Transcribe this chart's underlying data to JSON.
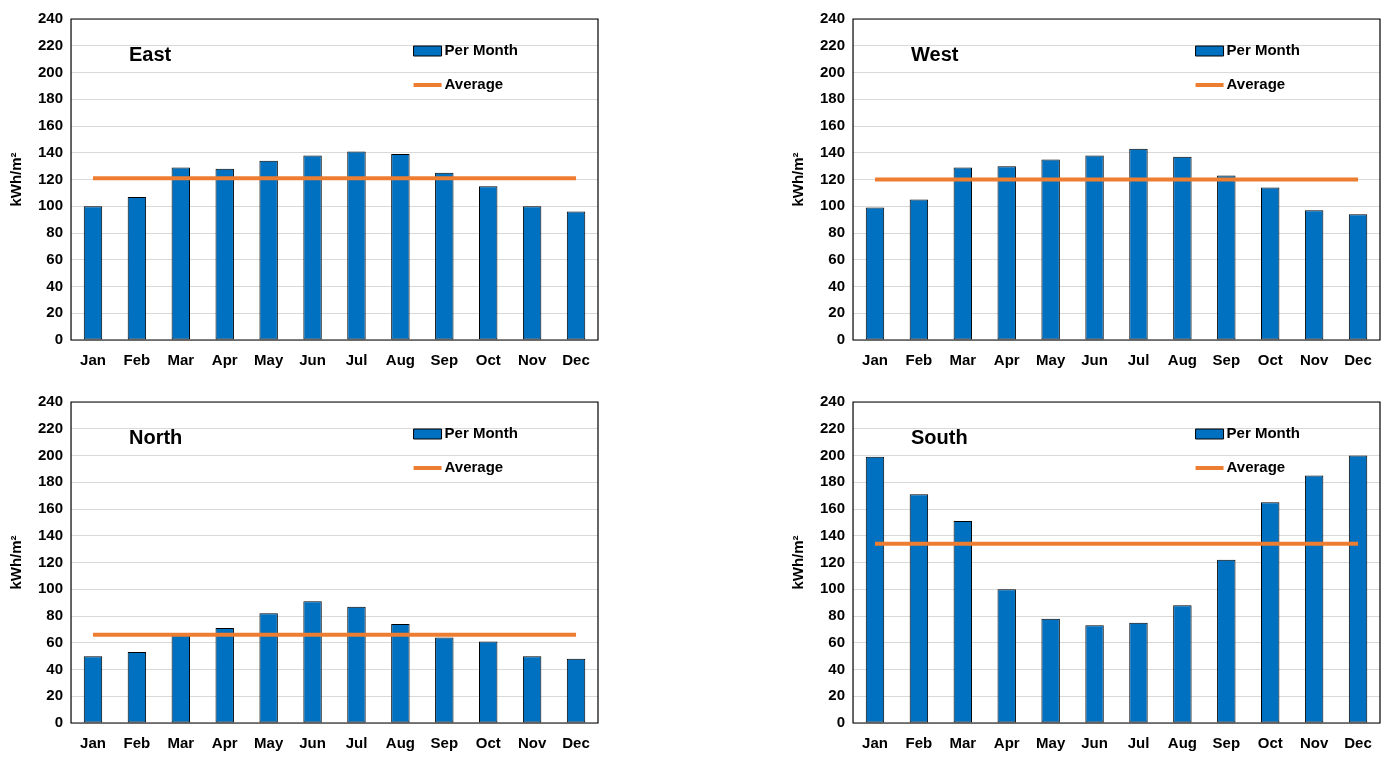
{
  "chart_data": [
    {
      "type": "bar",
      "title": "East",
      "ylabel": "kWh/m²",
      "categories": [
        "Jan",
        "Feb",
        "Mar",
        "Apr",
        "May",
        "Jun",
        "Jul",
        "Aug",
        "Sep",
        "Oct",
        "Nov",
        "Dec"
      ],
      "series": [
        {
          "name": "Per Month",
          "color": "#0070c0",
          "values": [
            100,
            107,
            129,
            128,
            134,
            138,
            141,
            139,
            125,
            115,
            100,
            96
          ]
        },
        {
          "name": "Average",
          "type": "line",
          "color": "#ed7d31",
          "values": [
            121,
            121,
            121,
            121,
            121,
            121,
            121,
            121,
            121,
            121,
            121,
            121
          ]
        }
      ],
      "ylim": [
        0,
        240
      ],
      "yticks": [
        0,
        20,
        40,
        60,
        80,
        100,
        120,
        140,
        160,
        180,
        200,
        220,
        240
      ],
      "grid": "y",
      "legend": "top right",
      "marker": "none",
      "line_style": "solid"
    },
    {
      "type": "bar",
      "title": "West",
      "ylabel": "kWh/m²",
      "categories": [
        "Jan",
        "Feb",
        "Mar",
        "Apr",
        "May",
        "Jun",
        "Jul",
        "Aug",
        "Sep",
        "Oct",
        "Nov",
        "Dec"
      ],
      "series": [
        {
          "name": "Per Month",
          "color": "#0070c0",
          "values": [
            99,
            105,
            129,
            130,
            135,
            138,
            143,
            137,
            123,
            114,
            97,
            94
          ]
        },
        {
          "name": "Average",
          "type": "line",
          "color": "#ed7d31",
          "values": [
            120,
            120,
            120,
            120,
            120,
            120,
            120,
            120,
            120,
            120,
            120,
            120
          ]
        }
      ],
      "ylim": [
        0,
        240
      ],
      "yticks": [
        0,
        20,
        40,
        60,
        80,
        100,
        120,
        140,
        160,
        180,
        200,
        220,
        240
      ],
      "grid": "y",
      "legend": "top right",
      "marker": "none",
      "line_style": "solid"
    },
    {
      "type": "bar",
      "title": "North",
      "ylabel": "kWh/m²",
      "categories": [
        "Jan",
        "Feb",
        "Mar",
        "Apr",
        "May",
        "Jun",
        "Jul",
        "Aug",
        "Sep",
        "Oct",
        "Nov",
        "Dec"
      ],
      "series": [
        {
          "name": "Per Month",
          "color": "#0070c0",
          "values": [
            50,
            53,
            66,
            71,
            82,
            91,
            87,
            74,
            64,
            61,
            50,
            48
          ]
        },
        {
          "name": "Average",
          "type": "line",
          "color": "#ed7d31",
          "values": [
            66,
            66,
            66,
            66,
            66,
            66,
            66,
            66,
            66,
            66,
            66,
            66
          ]
        }
      ],
      "ylim": [
        0,
        240
      ],
      "yticks": [
        0,
        20,
        40,
        60,
        80,
        100,
        120,
        140,
        160,
        180,
        200,
        220,
        240
      ],
      "grid": "y",
      "legend": "top right",
      "marker": "none",
      "line_style": "solid"
    },
    {
      "type": "bar",
      "title": "South",
      "ylabel": "kWh/m²",
      "categories": [
        "Jan",
        "Feb",
        "Mar",
        "Apr",
        "May",
        "Jun",
        "Jul",
        "Aug",
        "Sep",
        "Oct",
        "Nov",
        "Dec"
      ],
      "series": [
        {
          "name": "Per Month",
          "color": "#0070c0",
          "values": [
            199,
            171,
            151,
            100,
            78,
            73,
            75,
            88,
            122,
            165,
            185,
            200
          ]
        },
        {
          "name": "Average",
          "type": "line",
          "color": "#ed7d31",
          "values": [
            134,
            134,
            134,
            134,
            134,
            134,
            134,
            134,
            134,
            134,
            134,
            134
          ]
        }
      ],
      "ylim": [
        0,
        240
      ],
      "yticks": [
        0,
        20,
        40,
        60,
        80,
        100,
        120,
        140,
        160,
        180,
        200,
        220,
        240
      ],
      "grid": "y",
      "legend": "top right",
      "marker": "none",
      "line_style": "solid"
    }
  ]
}
